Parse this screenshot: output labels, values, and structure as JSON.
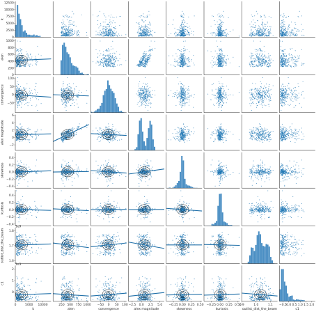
{
  "chart_data": {
    "type": "scatter",
    "kind": "pairplot",
    "point_color": "#1f77b4",
    "line_color": "#1f6fa8",
    "contour_color": "#000000",
    "variables": [
      {
        "name": "k",
        "range": [
          0,
          13000
        ],
        "ticks": [
          {
            "v": 0,
            "t": "0"
          },
          {
            "v": 5000,
            "t": "5000"
          },
          {
            "v": 10000,
            "t": "10000"
          }
        ],
        "yticks": [
          {
            "v": 0,
            "t": "0"
          },
          {
            "v": 2500,
            "t": "2500"
          },
          {
            "v": 5000,
            "t": "5000"
          },
          {
            "v": 7500,
            "t": "7500"
          },
          {
            "v": 10000,
            "t": "10000"
          },
          {
            "v": 12500,
            "t": "12500"
          }
        ],
        "dist": "skewR"
      },
      {
        "name": "alen",
        "range": [
          0,
          1050
        ],
        "ticks": [
          {
            "v": 250,
            "t": "250"
          },
          {
            "v": 500,
            "t": "500"
          },
          {
            "v": 750,
            "t": "750"
          },
          {
            "v": 1000,
            "t": "1000"
          }
        ],
        "yticks": [
          {
            "v": 0,
            "t": "0"
          },
          {
            "v": 200,
            "t": "200"
          },
          {
            "v": 400,
            "t": "400"
          },
          {
            "v": 600,
            "t": "600"
          },
          {
            "v": 800,
            "t": "800"
          },
          {
            "v": 1000,
            "t": "1000"
          }
        ],
        "dist": "skewR2"
      },
      {
        "name": "convergence",
        "range": [
          -110,
          110
        ],
        "ticks": [
          {
            "v": -50,
            "t": "−50"
          },
          {
            "v": 0,
            "t": "0"
          },
          {
            "v": 50,
            "t": "50"
          },
          {
            "v": 100,
            "t": "100"
          }
        ],
        "yticks": [
          {
            "v": -50,
            "t": "−50"
          },
          {
            "v": 0,
            "t": "0"
          },
          {
            "v": 50,
            "t": "50"
          },
          {
            "v": 100,
            "t": "100"
          }
        ],
        "dist": "normal"
      },
      {
        "name": "alex magnitude",
        "range": [
          -3.5,
          6.2
        ],
        "ticks": [
          {
            "v": -2.5,
            "t": "−2.5"
          },
          {
            "v": 0,
            "t": "0.0"
          },
          {
            "v": 2.5,
            "t": "2.5"
          },
          {
            "v": 5.0,
            "t": "5.0"
          }
        ],
        "yticks": [
          {
            "v": -2,
            "t": "−2"
          },
          {
            "v": 0,
            "t": "0"
          },
          {
            "v": 2,
            "t": "2"
          },
          {
            "v": 4,
            "t": "4"
          },
          {
            "v": 6,
            "t": "6"
          }
        ],
        "dist": "bimodal"
      },
      {
        "name": "skewness",
        "range": [
          -0.45,
          0.55
        ],
        "ticks": [
          {
            "v": -0.25,
            "t": "−0.25"
          },
          {
            "v": 0,
            "t": "0.00"
          },
          {
            "v": 0.25,
            "t": "0.25"
          },
          {
            "v": 0.5,
            "t": "0.50"
          }
        ],
        "yticks": [
          {
            "v": -0.4,
            "t": "−0.4"
          },
          {
            "v": -0.2,
            "t": "−0.2"
          },
          {
            "v": 0,
            "t": "0.0"
          },
          {
            "v": 0.2,
            "t": "0.2"
          },
          {
            "v": 0.4,
            "t": "0.4"
          }
        ],
        "dist": "peak"
      },
      {
        "name": "kurtosis",
        "range": [
          -0.45,
          0.55
        ],
        "ticks": [
          {
            "v": -0.25,
            "t": "−0.25"
          },
          {
            "v": 0,
            "t": "0.00"
          },
          {
            "v": 0.25,
            "t": "0.25"
          },
          {
            "v": 0.5,
            "t": "0.50"
          }
        ],
        "yticks": [
          {
            "v": -0.4,
            "t": "−0.4"
          },
          {
            "v": -0.2,
            "t": "−0.2"
          },
          {
            "v": 0,
            "t": "0.0"
          },
          {
            "v": 0.2,
            "t": "0.2"
          },
          {
            "v": 0.4,
            "t": "0.4"
          }
        ],
        "dist": "peak"
      },
      {
        "name": "outlist_dist_the_beam",
        "range": [
          0.9,
          1.15
        ],
        "ticks": [
          {
            "v": 0.9,
            "t": "0.9"
          },
          {
            "v": 1.0,
            "t": "1.0"
          },
          {
            "v": 1.1,
            "t": "1.1"
          }
        ],
        "yticks": [
          {
            "v": 1.6,
            "t": "1.6"
          },
          {
            "v": 1.7,
            "t": "1.7"
          },
          {
            "v": 1.8,
            "t": "1.8"
          }
        ],
        "ytick_map": [
          0.92,
          1.025,
          1.13
        ],
        "offset": "1e9",
        "dist": "multi"
      },
      {
        "name": "c1",
        "range": [
          -0.8,
          2.3
        ],
        "ticks": [
          {
            "v": -0.5,
            "t": "−0.5"
          },
          {
            "v": 0,
            "t": "0.0"
          },
          {
            "v": 0.5,
            "t": "0.5"
          },
          {
            "v": 1.0,
            "t": "1.0"
          },
          {
            "v": 1.5,
            "t": "1.5"
          },
          {
            "v": 2.0,
            "t": "2.0"
          }
        ],
        "yticks": [
          {
            "v": 0,
            "t": "0"
          },
          {
            "v": 1,
            "t": "1"
          },
          {
            "v": 2,
            "t": "2"
          }
        ],
        "offset": "1e3",
        "dist": "skewR"
      }
    ]
  }
}
